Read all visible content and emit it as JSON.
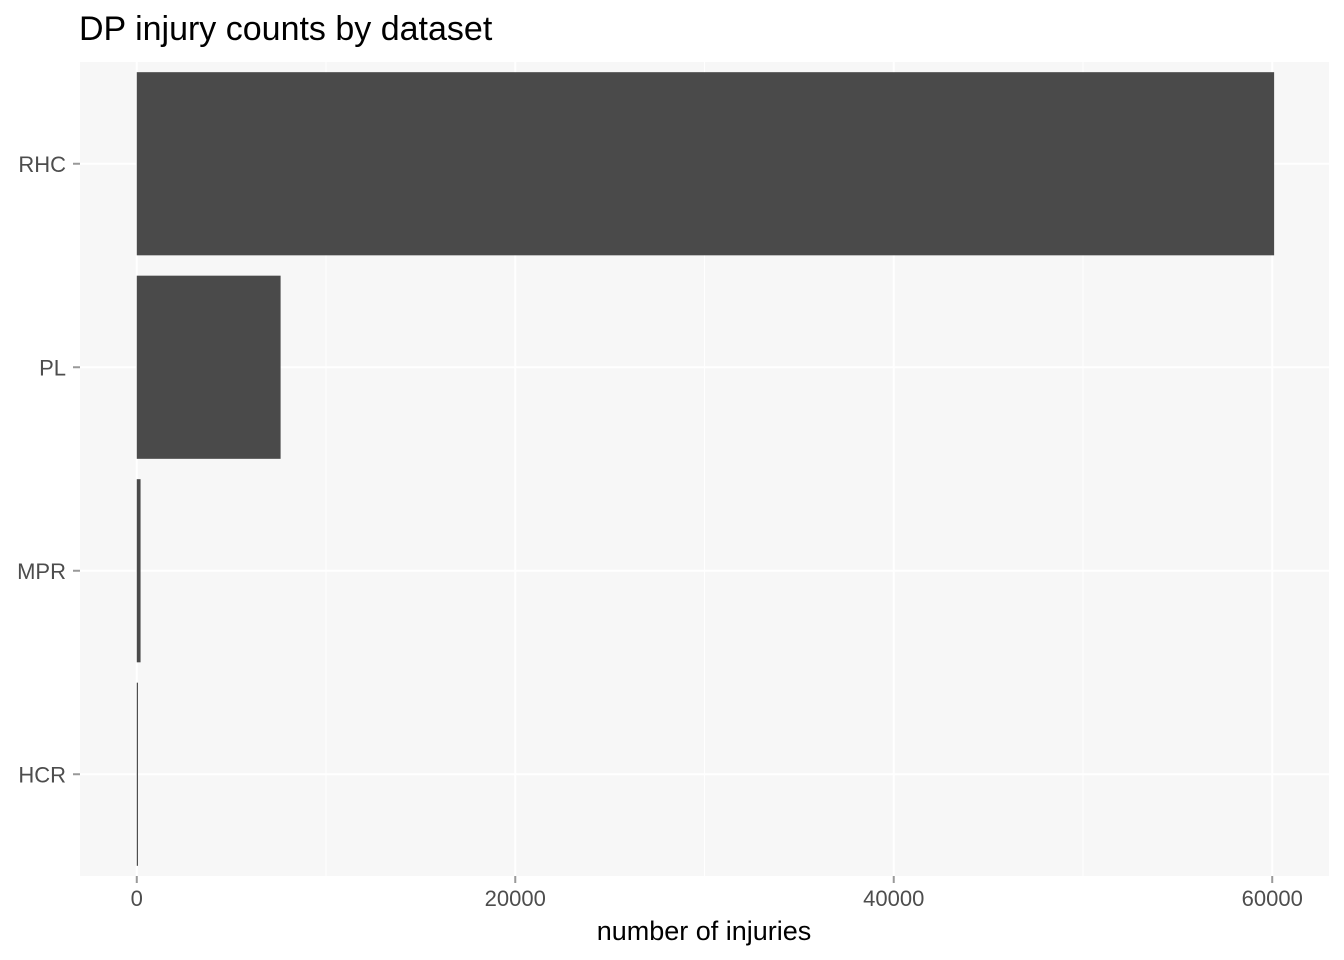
{
  "chart_data": {
    "type": "bar",
    "orientation": "horizontal",
    "title": "DP injury counts by dataset",
    "xlabel": "number of injuries",
    "ylabel": "",
    "categories": [
      "HCR",
      "MPR",
      "PL",
      "RHC"
    ],
    "values": [
      50,
      200,
      7600,
      60100
    ],
    "xlim": [
      -3000,
      63000
    ],
    "x_ticks": [
      0,
      20000,
      40000,
      60000
    ],
    "x_tick_labels": [
      "0",
      "20000",
      "40000",
      "60000"
    ],
    "grid": true,
    "legend": "none",
    "colors": {
      "panel_background": "#f7f7f7",
      "grid_line": "#ffffff",
      "bar_fill": "#4a4a4a",
      "tick_mark": "#999999"
    }
  }
}
